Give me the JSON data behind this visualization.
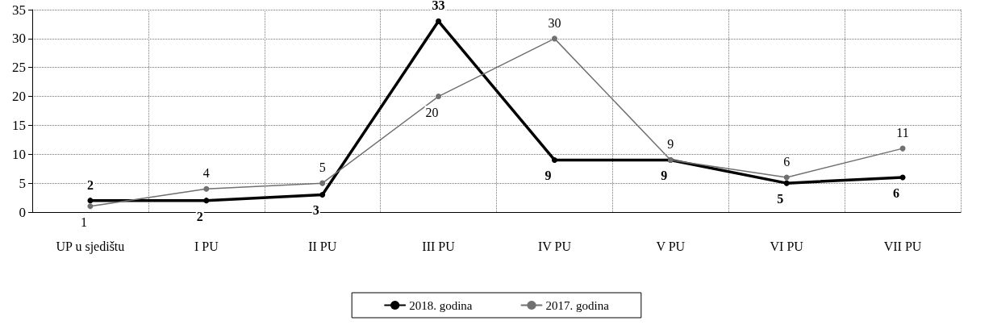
{
  "chart_data": {
    "type": "line",
    "categories": [
      "UP u sjedištu",
      "I PU",
      "II PU",
      "III PU",
      "IV PU",
      "V PU",
      "VI PU",
      "VII PU"
    ],
    "series": [
      {
        "name": "2018. godina",
        "color": "#000000",
        "values": [
          2,
          2,
          3,
          33,
          9,
          9,
          5,
          6
        ]
      },
      {
        "name": "2017. godina",
        "color": "#707070",
        "values": [
          1,
          4,
          5,
          20,
          30,
          9,
          6,
          11
        ]
      }
    ],
    "ylim": [
      0,
      35
    ],
    "yticks": [
      0,
      5,
      10,
      15,
      20,
      25,
      30,
      35
    ],
    "grid": true,
    "legend": "bottom",
    "marker": "circle",
    "line_style": "solid",
    "data_labels": true
  }
}
